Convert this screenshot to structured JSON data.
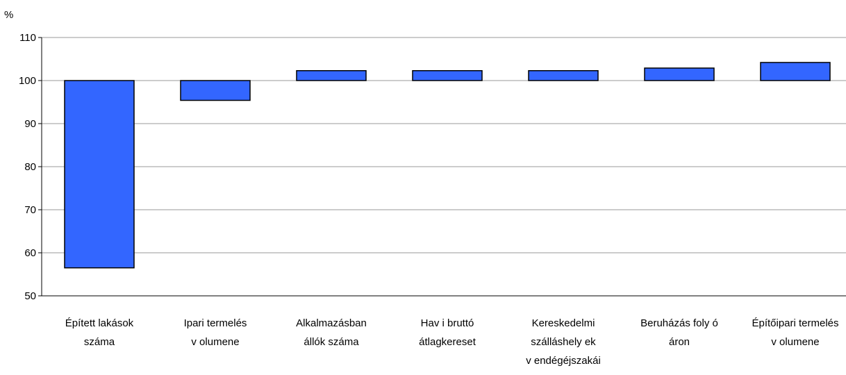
{
  "chart_data": {
    "type": "bar",
    "unit_label": "%",
    "baseline": 100,
    "ylim": [
      50,
      110
    ],
    "yticks": [
      50,
      60,
      70,
      80,
      90,
      100,
      110
    ],
    "grid": true,
    "categories": [
      [
        "Épített lakások",
        "száma"
      ],
      [
        "Ipari termelés",
        "v olumene"
      ],
      [
        "Alkalmazásban",
        "állók száma"
      ],
      [
        "Hav i bruttó",
        "átlagkereset"
      ],
      [
        "Kereskedelmi",
        "szálláshely ek",
        "v endégéjszakái"
      ],
      [
        "Beruházás foly ó",
        "áron"
      ],
      [
        "Építőipari termelés",
        "v olumene"
      ]
    ],
    "values": [
      56.5,
      95.4,
      102.3,
      102.3,
      102.3,
      102.9,
      104.2
    ],
    "colors": {
      "bar_fill": "#3366ff",
      "bar_stroke": "#000000",
      "grid": "#999999",
      "axis": "#000000"
    }
  }
}
